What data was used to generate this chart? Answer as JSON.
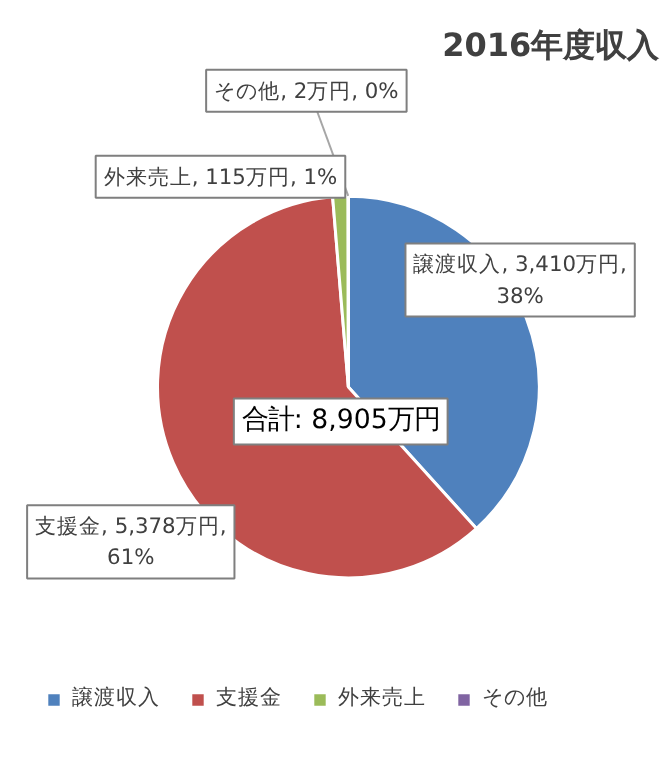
{
  "chart_data": {
    "type": "pie",
    "title": "2016年度収入",
    "categories": [
      "譲渡収入",
      "支援金",
      "外来売上",
      "その他"
    ],
    "values": [
      3410,
      5378,
      115,
      2
    ],
    "colors": [
      "#4f81bd",
      "#c0504d",
      "#9bbb59",
      "#8064a2"
    ],
    "value_labels": [
      "譲渡収入, 3,410万円, 38%",
      "支援金, 5,378万円, 61%",
      "外来売上, 115万円, 1%",
      "その他, 2万円, 0%"
    ],
    "annotations": [
      "合計: 8,905万円"
    ],
    "legend": "bottom"
  }
}
